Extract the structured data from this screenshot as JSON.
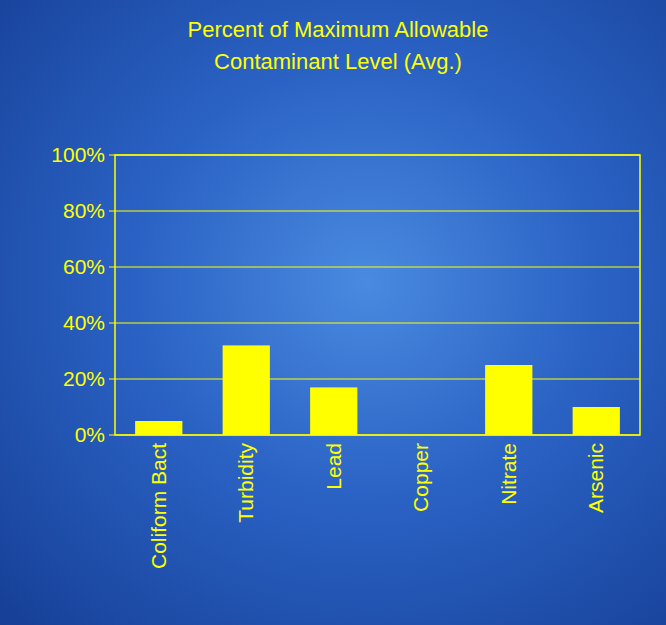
{
  "chart_data": {
    "type": "bar",
    "title": "Percent of Maximum Allowable Contaminant Level (Avg.)",
    "categories": [
      "Coliform Bact",
      "Turbidity",
      "Lead",
      "Copper",
      "Nitrate",
      "Arsenic"
    ],
    "values": [
      5,
      32,
      17,
      0,
      25,
      10
    ],
    "color": "#ffff00",
    "ylim": [
      0,
      100
    ],
    "yticks": [
      {
        "value": 0,
        "label": "0%"
      },
      {
        "value": 20,
        "label": "20%"
      },
      {
        "value": 40,
        "label": "40%"
      },
      {
        "value": 60,
        "label": "60%"
      },
      {
        "value": 80,
        "label": "80%"
      },
      {
        "value": 100,
        "label": "100%"
      }
    ],
    "grid": true
  }
}
